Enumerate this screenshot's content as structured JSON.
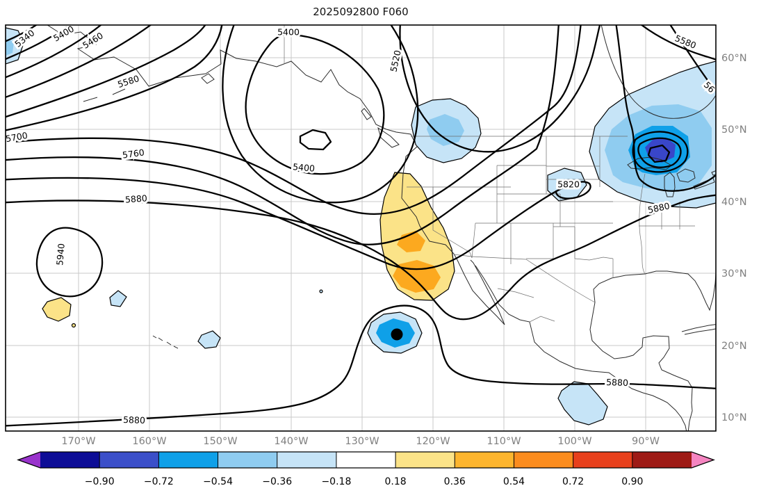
{
  "title": "2025092800 F060",
  "axes": {
    "lon_labels": [
      "170°W",
      "160°W",
      "150°W",
      "140°W",
      "130°W",
      "120°W",
      "110°W",
      "100°W",
      "90°W"
    ],
    "lat_labels": [
      "60°N",
      "50°N",
      "40°N",
      "30°N",
      "20°N",
      "10°N"
    ]
  },
  "contour_labels": [
    "5340",
    "5400",
    "5460",
    "5580",
    "5400",
    "5400",
    "5520",
    "5700",
    "5760",
    "5820",
    "5880",
    "5880",
    "5880",
    "5880",
    "5940",
    "5580",
    "56"
  ],
  "palette": {
    "shade_pale_blue": "#C6E4F7",
    "shade_mid_blue": "#8FCCF0",
    "shade_azure": "#0FA0E8",
    "shade_deep_blue": "#3946C9",
    "shade_pale_yellow": "#FBE388",
    "shade_orange": "#FCA91F",
    "marker_black": "#000000"
  },
  "colorbar": {
    "tick_labels": [
      "−0.90",
      "−0.72",
      "−0.54",
      "−0.36",
      "−0.18",
      "0.18",
      "0.36",
      "0.54",
      "0.72",
      "0.90"
    ],
    "cells": [
      "#0D0D96",
      "#3B4FC9",
      "#0FA0E8",
      "#8FCCF0",
      "#C6E4F7",
      "#FFFFFF",
      "#FBE388",
      "#FDB52E",
      "#FB8C1E",
      "#E8401C",
      "#9E1A15"
    ],
    "extend_left": "#9933CC",
    "extend_right": "#F585C1"
  },
  "chart_data": {
    "type": "contour_map",
    "title": "2025092800 F060",
    "x_axis_ticks": [
      "170°W",
      "160°W",
      "150°W",
      "140°W",
      "130°W",
      "120°W",
      "110°W",
      "100°W",
      "90°W"
    ],
    "y_axis_ticks": [
      "60°N",
      "50°N",
      "40°N",
      "30°N",
      "20°N",
      "10°N"
    ],
    "contours": {
      "labeled_levels": [
        5340,
        5400,
        5460,
        5520,
        5580,
        5700,
        5760,
        5820,
        5880,
        5940
      ],
      "partially_clipped_label": "56",
      "interval": 60
    },
    "features": [
      {
        "type": "closed_low",
        "approx_center": "141W 49N",
        "innermost_labeled_contour": 5400
      },
      {
        "type": "closed_high",
        "approx_center": "173W 28N",
        "contour": 5940
      },
      {
        "type": "closed_low",
        "approx_center": "88W 47N",
        "nearby_contours": [
          5820,
          5880
        ]
      },
      {
        "type": "trough",
        "approx_location": "offshore California near 122W, 28N-38N"
      },
      {
        "type": "zonal_contour",
        "level": 5880,
        "approx_location": "along 13N-16N across southern edge"
      }
    ],
    "shaded_anomalies": {
      "colorbar_boundary_values": [
        -0.9,
        -0.72,
        -0.54,
        -0.36,
        -0.18,
        0.18,
        0.36,
        0.54,
        0.72,
        0.9
      ],
      "regions": [
        {
          "sign": "negative",
          "approx_center": "180W 62N",
          "peak_bin": "-0.54 to -0.36"
        },
        {
          "sign": "negative",
          "approx_center": "118W 50N",
          "peak_bin": "-0.54 to -0.36"
        },
        {
          "sign": "negative",
          "approx_center": "88W 47N",
          "peak_bin": "-0.72 to -0.54"
        },
        {
          "sign": "negative",
          "approx_center": "101W 42N",
          "peak_bin": "-0.36 to -0.18"
        },
        {
          "sign": "positive",
          "approx_center": "122W 33N",
          "peak_bin": "0.36 to 0.54"
        },
        {
          "sign": "negative",
          "approx_center": "125W 21N",
          "peak_bin": "-0.72 to -0.54",
          "note": "black dot marker at center"
        },
        {
          "sign": "negative",
          "approx_center": "99W 12N",
          "peak_bin": "-0.36 to -0.18"
        },
        {
          "sign": "positive",
          "approx_center": "173W 26N",
          "peak_bin": "0.18 to 0.36"
        },
        {
          "sign": "negative",
          "approx_center": "152W 21N",
          "peak_bin": "-0.36 to -0.18"
        },
        {
          "sign": "negative",
          "approx_center": "165W 27N",
          "peak_bin": "-0.36 to -0.18"
        }
      ]
    },
    "point_marker": {
      "style": "filled_black_dot",
      "approx_location": "125W 21N"
    }
  }
}
